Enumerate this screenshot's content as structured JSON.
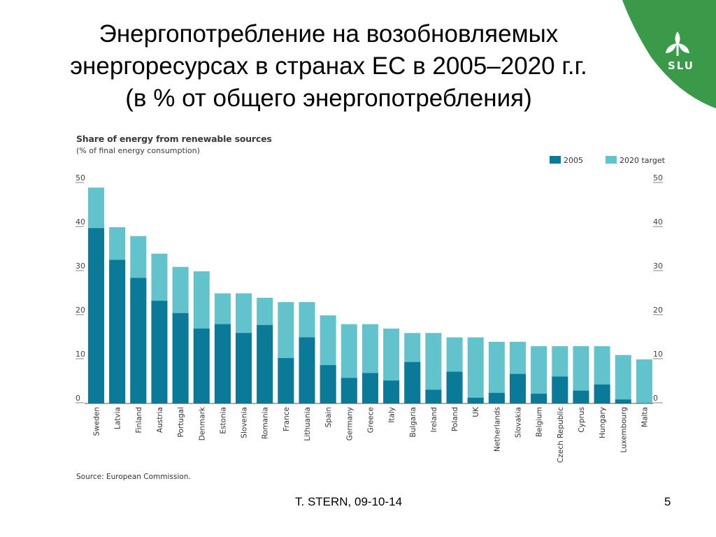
{
  "slide": {
    "title_lines": [
      "Энергопотребление на возобновляемых",
      "энергоресурсах в странах ЕС в 2005–2020  г.г.",
      "(в % от общего энергопотребления)"
    ],
    "logo_text": "SLU",
    "footer_author": "T. STERN, 09-10-14",
    "page_number": "5"
  },
  "colors": {
    "series_2005": "#0b7a99",
    "series_2020": "#62c3cc",
    "logo_green": "#3a9a4a",
    "axis": "#555555"
  },
  "chart_data": {
    "type": "bar",
    "title": "Share of energy from renewable sources",
    "subtitle": "(% of final energy consumption)",
    "source": "Source: European Commission.",
    "ylim": [
      0,
      50
    ],
    "yticks": [
      0,
      10,
      20,
      30,
      40,
      50
    ],
    "legend_position": "top-right",
    "categories": [
      "Sweden",
      "Latvia",
      "Finland",
      "Austria",
      "Portugal",
      "Denmark",
      "Estonia",
      "Slovenia",
      "Romania",
      "France",
      "Lithuania",
      "Spain",
      "Germany",
      "Greece",
      "Italy",
      "Bulgaria",
      "Ireland",
      "Poland",
      "UK",
      "Netherlands",
      "Slovakia",
      "Belgium",
      "Czech Republic",
      "Cyprus",
      "Hungary",
      "Luxembourg",
      "Malta"
    ],
    "series": [
      {
        "name": "2005",
        "values": [
          39.8,
          32.6,
          28.5,
          23.3,
          20.5,
          17.0,
          18.0,
          16.0,
          17.8,
          10.3,
          15.0,
          8.7,
          5.8,
          6.9,
          5.2,
          9.4,
          3.1,
          7.2,
          1.3,
          2.4,
          6.7,
          2.2,
          6.1,
          2.9,
          4.3,
          0.9,
          0.0
        ]
      },
      {
        "name": "2020 target",
        "values": [
          49,
          40,
          38,
          34,
          31,
          30,
          25,
          25,
          24,
          23,
          23,
          20,
          18,
          18,
          17,
          16,
          16,
          15,
          15,
          14,
          14,
          13,
          13,
          13,
          13,
          11,
          10
        ]
      }
    ]
  }
}
